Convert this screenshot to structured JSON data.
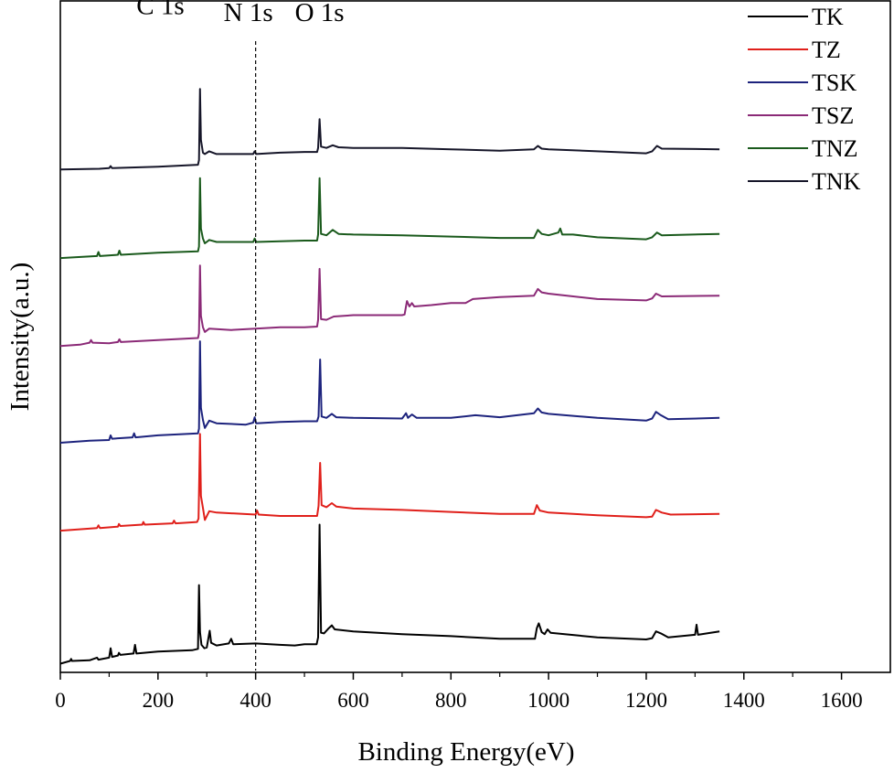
{
  "chart_data": {
    "type": "line",
    "xlabel": "Binding Energy(eV)",
    "ylabel": "Intensity(a.u.)",
    "xlim": [
      0,
      1700
    ],
    "ylim": [
      0,
      100
    ],
    "xticks": [
      "0",
      "200",
      "400",
      "600",
      "800",
      "1000",
      "1200",
      "1400",
      "1600"
    ],
    "grid": false,
    "legend_position": "top-right",
    "reference_line": {
      "x": 400,
      "style": "dashed"
    },
    "peak_labels": [
      {
        "text": "C 1s",
        "x": 205,
        "y": 98
      },
      {
        "text": "N 1s",
        "x": 385,
        "y": 97
      },
      {
        "text": "O 1s",
        "x": 531,
        "y": 97
      }
    ],
    "series": [
      {
        "name": "TK",
        "color": "#000000",
        "points": [
          [
            0,
            1.3
          ],
          [
            20,
            1.7
          ],
          [
            22,
            2.0
          ],
          [
            24,
            1.7
          ],
          [
            60,
            1.8
          ],
          [
            75,
            2.2
          ],
          [
            78,
            1.9
          ],
          [
            100,
            2.2
          ],
          [
            103,
            3.6
          ],
          [
            106,
            2.3
          ],
          [
            118,
            2.5
          ],
          [
            120,
            2.9
          ],
          [
            123,
            2.6
          ],
          [
            150,
            2.8
          ],
          [
            153,
            4.1
          ],
          [
            156,
            2.8
          ],
          [
            200,
            3.1
          ],
          [
            270,
            3.3
          ],
          [
            282,
            3.5
          ],
          [
            284,
            13.0
          ],
          [
            286,
            6.0
          ],
          [
            289,
            4.1
          ],
          [
            295,
            3.6
          ],
          [
            300,
            3.7
          ],
          [
            306,
            6.2
          ],
          [
            309,
            4.4
          ],
          [
            320,
            4.0
          ],
          [
            345,
            4.3
          ],
          [
            350,
            5.0
          ],
          [
            354,
            4.2
          ],
          [
            400,
            4.3
          ],
          [
            450,
            4.1
          ],
          [
            480,
            4.0
          ],
          [
            500,
            4.2
          ],
          [
            525,
            4.2
          ],
          [
            528,
            5.2
          ],
          [
            531,
            22.0
          ],
          [
            534,
            5.9
          ],
          [
            540,
            5.8
          ],
          [
            550,
            6.6
          ],
          [
            556,
            7.0
          ],
          [
            562,
            6.4
          ],
          [
            600,
            6.1
          ],
          [
            700,
            5.7
          ],
          [
            800,
            5.4
          ],
          [
            900,
            5.0
          ],
          [
            972,
            5.0
          ],
          [
            976,
            6.6
          ],
          [
            980,
            7.3
          ],
          [
            986,
            6.0
          ],
          [
            992,
            5.7
          ],
          [
            998,
            6.4
          ],
          [
            1004,
            5.9
          ],
          [
            1100,
            5.2
          ],
          [
            1200,
            4.9
          ],
          [
            1212,
            5.1
          ],
          [
            1220,
            6.1
          ],
          [
            1230,
            5.8
          ],
          [
            1245,
            5.2
          ],
          [
            1300,
            5.6
          ],
          [
            1303,
            7.1
          ],
          [
            1306,
            5.6
          ],
          [
            1350,
            6.1
          ]
        ]
      },
      {
        "name": "TZ",
        "color": "#e0201b",
        "points": [
          [
            0,
            21.1
          ],
          [
            75,
            21.5
          ],
          [
            78,
            21.9
          ],
          [
            81,
            21.5
          ],
          [
            118,
            21.7
          ],
          [
            120,
            22.1
          ],
          [
            123,
            21.8
          ],
          [
            168,
            22.0
          ],
          [
            170,
            22.4
          ],
          [
            173,
            22.0
          ],
          [
            230,
            22.2
          ],
          [
            233,
            22.6
          ],
          [
            236,
            22.2
          ],
          [
            280,
            22.4
          ],
          [
            283,
            22.9
          ],
          [
            286,
            35.5
          ],
          [
            288,
            26.3
          ],
          [
            292,
            24.5
          ],
          [
            296,
            22.7
          ],
          [
            305,
            24.0
          ],
          [
            320,
            23.8
          ],
          [
            400,
            23.5
          ],
          [
            403,
            24.1
          ],
          [
            406,
            23.5
          ],
          [
            450,
            23.3
          ],
          [
            500,
            23.3
          ],
          [
            526,
            23.3
          ],
          [
            529,
            24.8
          ],
          [
            532,
            31.2
          ],
          [
            535,
            24.9
          ],
          [
            545,
            24.6
          ],
          [
            556,
            25.2
          ],
          [
            565,
            24.7
          ],
          [
            600,
            24.4
          ],
          [
            700,
            24.2
          ],
          [
            800,
            23.9
          ],
          [
            900,
            23.6
          ],
          [
            970,
            23.6
          ],
          [
            976,
            24.9
          ],
          [
            982,
            24.1
          ],
          [
            1000,
            23.8
          ],
          [
            1100,
            23.4
          ],
          [
            1200,
            23.1
          ],
          [
            1212,
            23.2
          ],
          [
            1220,
            24.2
          ],
          [
            1232,
            23.8
          ],
          [
            1250,
            23.5
          ],
          [
            1350,
            23.6
          ]
        ]
      },
      {
        "name": "TSK",
        "color": "#1d237d",
        "points": [
          [
            0,
            34.2
          ],
          [
            60,
            34.5
          ],
          [
            100,
            34.6
          ],
          [
            103,
            35.3
          ],
          [
            106,
            34.8
          ],
          [
            148,
            35.0
          ],
          [
            151,
            35.6
          ],
          [
            154,
            35.0
          ],
          [
            200,
            35.3
          ],
          [
            282,
            35.6
          ],
          [
            284,
            36.3
          ],
          [
            286,
            49.3
          ],
          [
            288,
            39.4
          ],
          [
            292,
            37.6
          ],
          [
            296,
            36.4
          ],
          [
            305,
            37.5
          ],
          [
            320,
            37.1
          ],
          [
            380,
            36.9
          ],
          [
            395,
            37.2
          ],
          [
            398,
            38.0
          ],
          [
            401,
            37.1
          ],
          [
            450,
            37.3
          ],
          [
            500,
            37.4
          ],
          [
            526,
            37.4
          ],
          [
            529,
            38.1
          ],
          [
            532,
            46.6
          ],
          [
            535,
            38.1
          ],
          [
            545,
            37.9
          ],
          [
            556,
            38.5
          ],
          [
            565,
            38.0
          ],
          [
            600,
            37.9
          ],
          [
            700,
            37.8
          ],
          [
            708,
            38.6
          ],
          [
            712,
            37.9
          ],
          [
            720,
            38.4
          ],
          [
            730,
            37.9
          ],
          [
            800,
            37.9
          ],
          [
            850,
            38.3
          ],
          [
            900,
            38.0
          ],
          [
            970,
            38.6
          ],
          [
            978,
            39.3
          ],
          [
            986,
            38.7
          ],
          [
            1000,
            38.5
          ],
          [
            1100,
            37.9
          ],
          [
            1200,
            37.5
          ],
          [
            1212,
            37.8
          ],
          [
            1220,
            38.8
          ],
          [
            1230,
            38.3
          ],
          [
            1245,
            37.7
          ],
          [
            1350,
            37.9
          ]
        ]
      },
      {
        "name": "TSZ",
        "color": "#8b2a77",
        "points": [
          [
            0,
            48.6
          ],
          [
            40,
            48.8
          ],
          [
            60,
            49.1
          ],
          [
            63,
            49.5
          ],
          [
            66,
            49.1
          ],
          [
            100,
            49.0
          ],
          [
            118,
            49.2
          ],
          [
            121,
            49.6
          ],
          [
            124,
            49.2
          ],
          [
            200,
            49.5
          ],
          [
            282,
            49.8
          ],
          [
            284,
            50.5
          ],
          [
            286,
            60.6
          ],
          [
            288,
            53.1
          ],
          [
            292,
            51.4
          ],
          [
            296,
            50.7
          ],
          [
            305,
            51.2
          ],
          [
            350,
            51.0
          ],
          [
            400,
            51.2
          ],
          [
            450,
            51.4
          ],
          [
            500,
            51.4
          ],
          [
            526,
            51.5
          ],
          [
            528,
            52.5
          ],
          [
            531,
            60.1
          ],
          [
            534,
            52.6
          ],
          [
            545,
            52.5
          ],
          [
            560,
            53.0
          ],
          [
            600,
            53.2
          ],
          [
            700,
            53.2
          ],
          [
            705,
            53.3
          ],
          [
            710,
            55.3
          ],
          [
            715,
            54.5
          ],
          [
            720,
            55.0
          ],
          [
            725,
            54.5
          ],
          [
            760,
            54.7
          ],
          [
            800,
            55.0
          ],
          [
            830,
            55.0
          ],
          [
            845,
            55.6
          ],
          [
            900,
            55.9
          ],
          [
            970,
            56.1
          ],
          [
            978,
            57.1
          ],
          [
            986,
            56.6
          ],
          [
            1000,
            56.4
          ],
          [
            1100,
            55.6
          ],
          [
            1200,
            55.4
          ],
          [
            1212,
            55.7
          ],
          [
            1220,
            56.4
          ],
          [
            1232,
            56.0
          ],
          [
            1350,
            56.1
          ]
        ]
      },
      {
        "name": "TNZ",
        "color": "#1a5a1c",
        "points": [
          [
            0,
            61.7
          ],
          [
            75,
            62.0
          ],
          [
            78,
            62.6
          ],
          [
            81,
            62.0
          ],
          [
            118,
            62.2
          ],
          [
            121,
            62.8
          ],
          [
            124,
            62.2
          ],
          [
            200,
            62.5
          ],
          [
            282,
            62.7
          ],
          [
            284,
            63.4
          ],
          [
            286,
            73.6
          ],
          [
            288,
            66.1
          ],
          [
            292,
            64.6
          ],
          [
            296,
            63.9
          ],
          [
            305,
            64.4
          ],
          [
            320,
            64.1
          ],
          [
            395,
            64.1
          ],
          [
            398,
            64.6
          ],
          [
            401,
            64.1
          ],
          [
            450,
            64.2
          ],
          [
            500,
            64.3
          ],
          [
            526,
            64.3
          ],
          [
            528,
            65.2
          ],
          [
            531,
            73.6
          ],
          [
            534,
            65.3
          ],
          [
            545,
            65.1
          ],
          [
            558,
            65.9
          ],
          [
            570,
            65.3
          ],
          [
            600,
            65.2
          ],
          [
            700,
            65.1
          ],
          [
            800,
            64.9
          ],
          [
            900,
            64.7
          ],
          [
            970,
            64.7
          ],
          [
            978,
            65.9
          ],
          [
            986,
            65.3
          ],
          [
            1000,
            65.1
          ],
          [
            1020,
            65.5
          ],
          [
            1024,
            66.1
          ],
          [
            1028,
            65.2
          ],
          [
            1050,
            65.2
          ],
          [
            1100,
            64.8
          ],
          [
            1200,
            64.5
          ],
          [
            1212,
            64.8
          ],
          [
            1222,
            65.5
          ],
          [
            1232,
            65.1
          ],
          [
            1350,
            65.3
          ]
        ]
      },
      {
        "name": "TNK",
        "color": "#161629",
        "points": [
          [
            0,
            74.9
          ],
          [
            80,
            75.0
          ],
          [
            100,
            75.1
          ],
          [
            103,
            75.4
          ],
          [
            106,
            75.1
          ],
          [
            200,
            75.3
          ],
          [
            282,
            75.6
          ],
          [
            284,
            76.3
          ],
          [
            286,
            86.9
          ],
          [
            288,
            79.3
          ],
          [
            292,
            77.4
          ],
          [
            296,
            77.2
          ],
          [
            305,
            77.6
          ],
          [
            320,
            77.2
          ],
          [
            395,
            77.2
          ],
          [
            398,
            77.6
          ],
          [
            401,
            77.2
          ],
          [
            450,
            77.4
          ],
          [
            500,
            77.5
          ],
          [
            526,
            77.5
          ],
          [
            528,
            78.1
          ],
          [
            531,
            82.4
          ],
          [
            534,
            78.3
          ],
          [
            545,
            78.1
          ],
          [
            558,
            78.5
          ],
          [
            570,
            78.2
          ],
          [
            600,
            78.1
          ],
          [
            700,
            78.1
          ],
          [
            800,
            77.9
          ],
          [
            900,
            77.7
          ],
          [
            970,
            77.9
          ],
          [
            978,
            78.4
          ],
          [
            986,
            78.0
          ],
          [
            1000,
            77.9
          ],
          [
            1100,
            77.6
          ],
          [
            1200,
            77.3
          ],
          [
            1212,
            77.6
          ],
          [
            1222,
            78.4
          ],
          [
            1232,
            78.0
          ],
          [
            1350,
            77.9
          ]
        ]
      }
    ]
  }
}
